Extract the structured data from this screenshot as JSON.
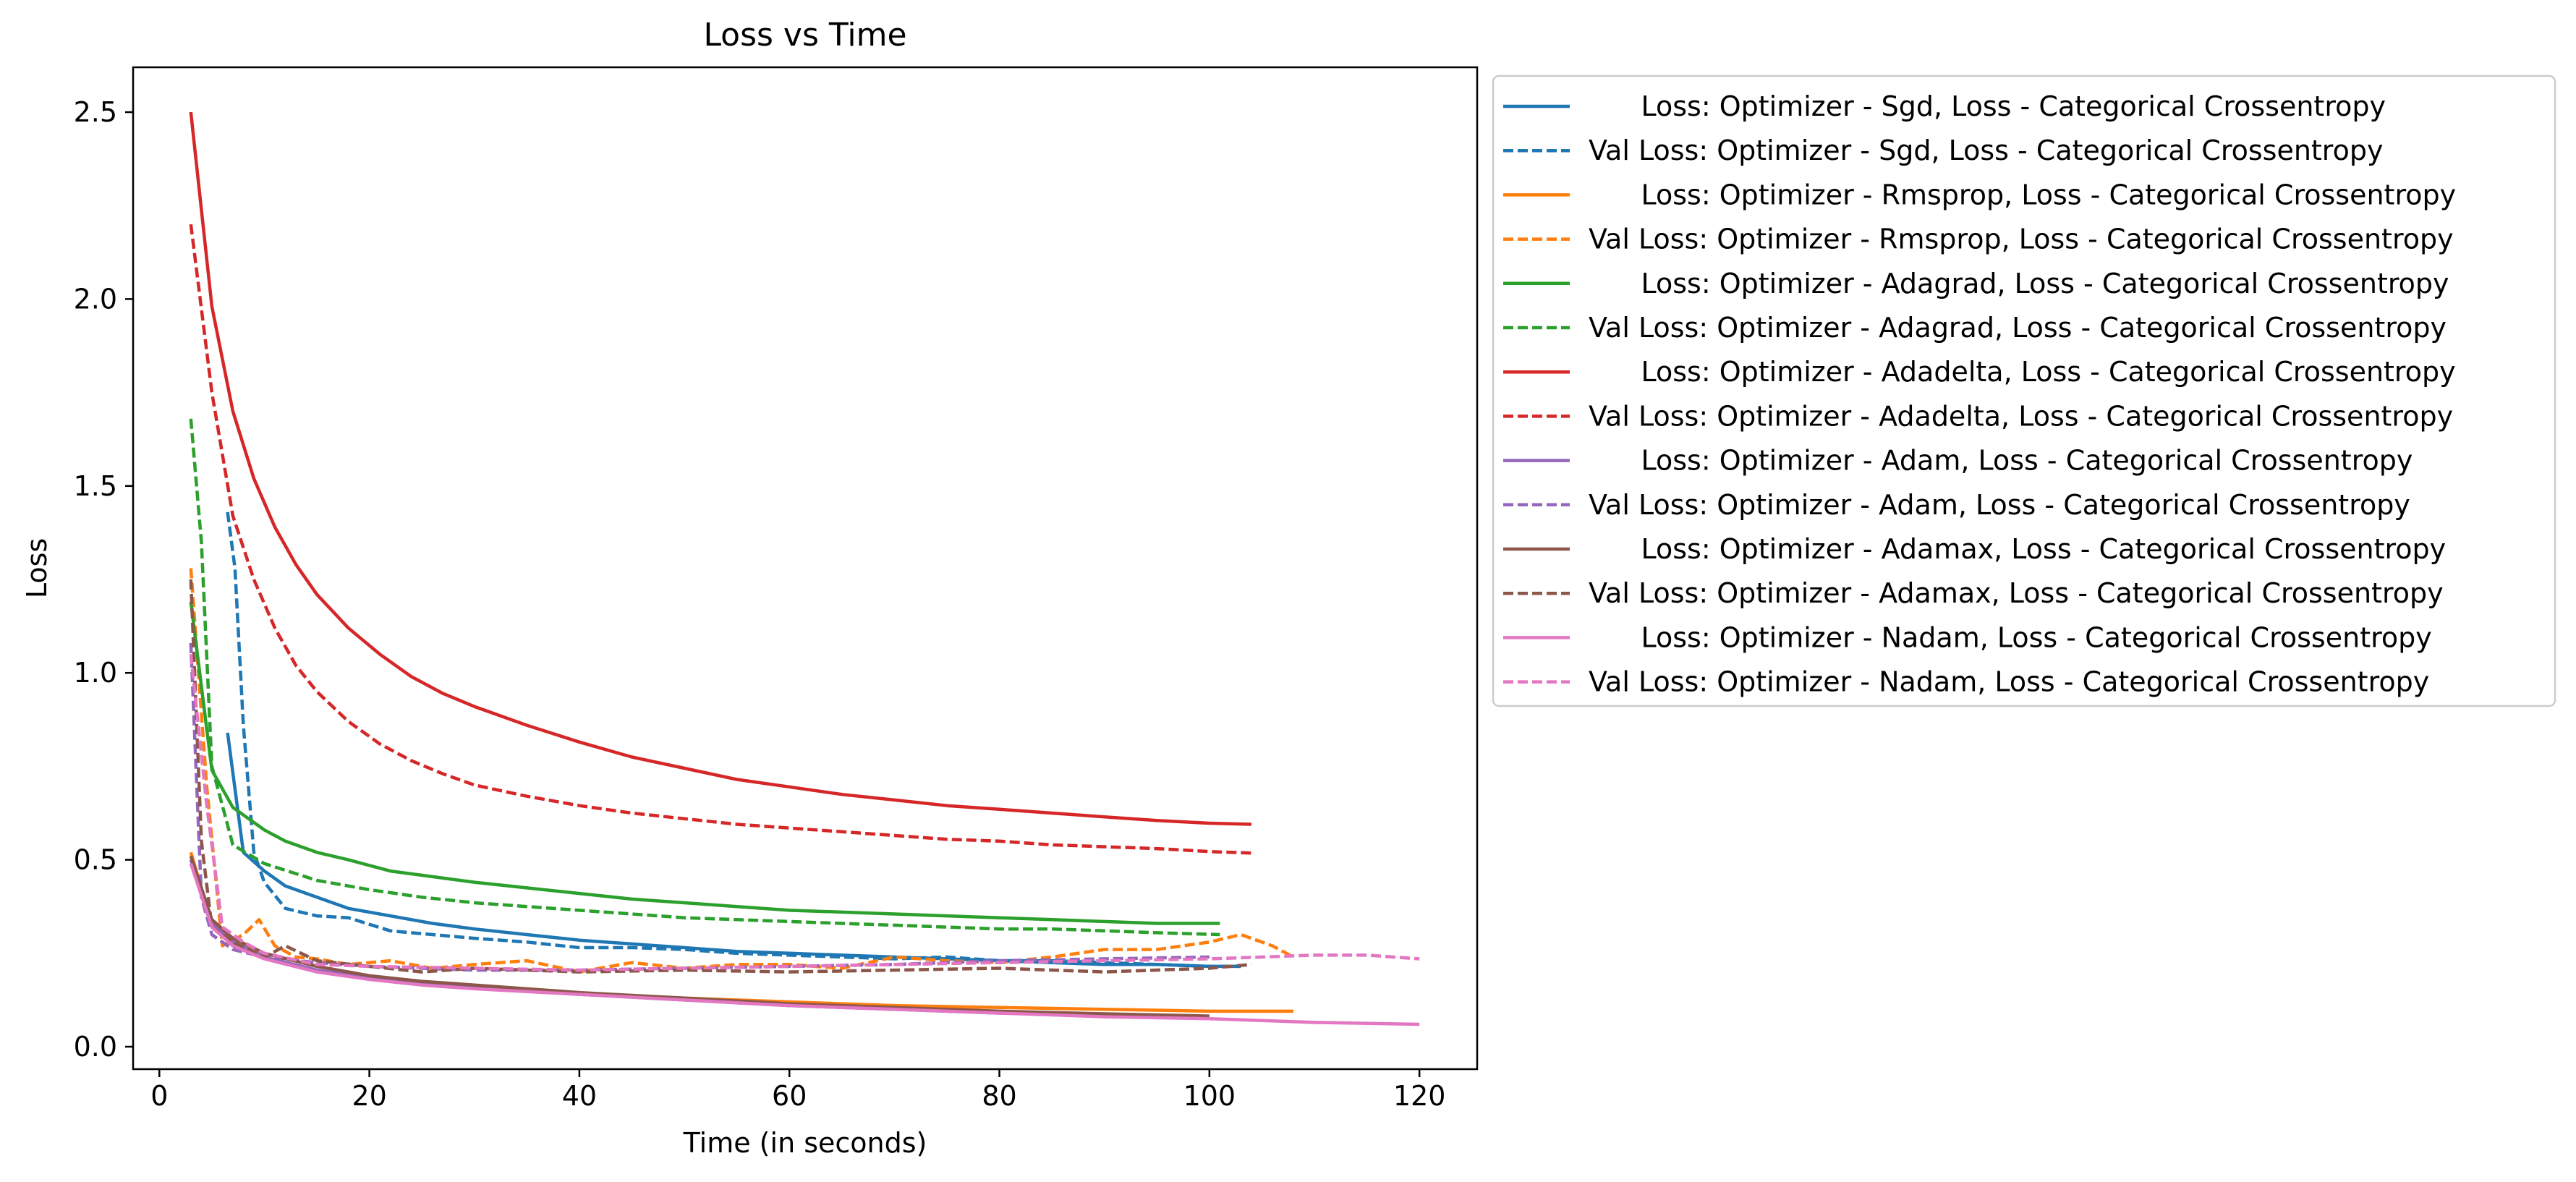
{
  "chart_data": {
    "type": "line",
    "title": "Loss vs Time",
    "xlabel": "Time (in seconds)",
    "ylabel": "Loss",
    "xlim": [
      -2.5,
      125.5
    ],
    "ylim": [
      -0.06,
      2.62
    ],
    "xticks": [
      0,
      20,
      40,
      60,
      80,
      100,
      120
    ],
    "xtick_labels": [
      "0",
      "20",
      "40",
      "60",
      "80",
      "100",
      "120"
    ],
    "yticks": [
      0.0,
      0.5,
      1.0,
      1.5,
      2.0,
      2.5
    ],
    "ytick_labels": [
      "0.0",
      "0.5",
      "1.0",
      "1.5",
      "2.0",
      "2.5"
    ],
    "grid": false,
    "legend_position": "outside-right",
    "series": [
      {
        "name": "      Loss: Optimizer - Sgd, Loss - Categorical Crossentropy",
        "color": "#1f77b4",
        "dash": "solid",
        "x": [
          6.5,
          8,
          10,
          12,
          15,
          18,
          22,
          26,
          30,
          35,
          40,
          45,
          50,
          55,
          60,
          65,
          70,
          75,
          80,
          85,
          90,
          95,
          100,
          103
        ],
        "y": [
          0.84,
          0.52,
          0.47,
          0.43,
          0.4,
          0.37,
          0.35,
          0.33,
          0.315,
          0.3,
          0.285,
          0.275,
          0.265,
          0.255,
          0.25,
          0.245,
          0.24,
          0.235,
          0.23,
          0.225,
          0.22,
          0.22,
          0.215,
          0.215
        ]
      },
      {
        "name": "Val Loss: Optimizer - Sgd, Loss - Categorical Crossentropy",
        "color": "#1f77b4",
        "dash": "dashed",
        "x": [
          6.5,
          7.2,
          8,
          9,
          10,
          12,
          15,
          18,
          22,
          26,
          30,
          35,
          40,
          45,
          50,
          55,
          60,
          65,
          70,
          75,
          80,
          85,
          90,
          95,
          100,
          103
        ],
        "y": [
          1.43,
          1.28,
          0.86,
          0.52,
          0.44,
          0.37,
          0.35,
          0.345,
          0.31,
          0.3,
          0.29,
          0.28,
          0.265,
          0.265,
          0.26,
          0.25,
          0.245,
          0.24,
          0.235,
          0.24,
          0.23,
          0.23,
          0.225,
          0.22,
          0.215,
          0.215
        ]
      },
      {
        "name": "      Loss: Optimizer - Rmsprop, Loss - Categorical Crossentropy",
        "color": "#ff7f0e",
        "dash": "solid",
        "x": [
          3,
          5,
          7,
          10,
          15,
          20,
          25,
          30,
          40,
          50,
          60,
          70,
          80,
          90,
          100,
          108
        ],
        "y": [
          0.52,
          0.33,
          0.28,
          0.24,
          0.205,
          0.185,
          0.17,
          0.16,
          0.14,
          0.13,
          0.12,
          0.11,
          0.105,
          0.1,
          0.095,
          0.095
        ]
      },
      {
        "name": "Val Loss: Optimizer - Rmsprop, Loss - Categorical Crossentropy",
        "color": "#ff7f0e",
        "dash": "dashed",
        "x": [
          3,
          4.5,
          6,
          8,
          9.5,
          11,
          13,
          15,
          18,
          22,
          26,
          30,
          35,
          40,
          45,
          50,
          55,
          60,
          65,
          70,
          75,
          80,
          85,
          90,
          95,
          100,
          103,
          106,
          108
        ],
        "y": [
          1.28,
          0.7,
          0.27,
          0.3,
          0.34,
          0.27,
          0.24,
          0.235,
          0.22,
          0.23,
          0.21,
          0.22,
          0.23,
          0.2,
          0.225,
          0.21,
          0.22,
          0.22,
          0.21,
          0.24,
          0.23,
          0.225,
          0.24,
          0.26,
          0.26,
          0.28,
          0.3,
          0.27,
          0.24
        ]
      },
      {
        "name": "      Loss: Optimizer - Adagrad, Loss - Categorical Crossentropy",
        "color": "#2ca02c",
        "dash": "solid",
        "x": [
          3,
          5,
          7,
          10,
          12,
          15,
          18,
          22,
          26,
          30,
          35,
          40,
          45,
          50,
          55,
          60,
          65,
          70,
          75,
          80,
          85,
          90,
          95,
          101
        ],
        "y": [
          1.19,
          0.74,
          0.64,
          0.58,
          0.55,
          0.52,
          0.5,
          0.47,
          0.455,
          0.44,
          0.425,
          0.41,
          0.395,
          0.385,
          0.375,
          0.365,
          0.36,
          0.355,
          0.35,
          0.345,
          0.34,
          0.335,
          0.33,
          0.33
        ]
      },
      {
        "name": "Val Loss: Optimizer - Adagrad, Loss - Categorical Crossentropy",
        "color": "#2ca02c",
        "dash": "dashed",
        "x": [
          3,
          4,
          5,
          7,
          10,
          15,
          20,
          25,
          30,
          35,
          40,
          45,
          50,
          55,
          60,
          65,
          70,
          75,
          80,
          85,
          90,
          95,
          101
        ],
        "y": [
          1.68,
          1.35,
          0.75,
          0.54,
          0.49,
          0.445,
          0.42,
          0.4,
          0.385,
          0.375,
          0.365,
          0.355,
          0.345,
          0.34,
          0.335,
          0.33,
          0.325,
          0.32,
          0.315,
          0.315,
          0.31,
          0.305,
          0.3
        ]
      },
      {
        "name": "      Loss: Optimizer - Adadelta, Loss - Categorical Crossentropy",
        "color": "#d62728",
        "dash": "solid",
        "x": [
          3,
          5,
          7,
          9,
          11,
          13,
          15,
          18,
          21,
          24,
          27,
          30,
          35,
          40,
          45,
          50,
          55,
          60,
          65,
          70,
          75,
          80,
          85,
          90,
          95,
          100,
          104
        ],
        "y": [
          2.5,
          1.98,
          1.7,
          1.52,
          1.39,
          1.29,
          1.21,
          1.12,
          1.05,
          0.99,
          0.945,
          0.91,
          0.86,
          0.815,
          0.775,
          0.745,
          0.715,
          0.695,
          0.675,
          0.66,
          0.645,
          0.635,
          0.625,
          0.615,
          0.605,
          0.598,
          0.595
        ]
      },
      {
        "name": "Val Loss: Optimizer - Adadelta, Loss - Categorical Crossentropy",
        "color": "#d62728",
        "dash": "dashed",
        "x": [
          3,
          5,
          7,
          9,
          11,
          13,
          15,
          18,
          21,
          24,
          27,
          30,
          35,
          40,
          45,
          50,
          55,
          60,
          65,
          70,
          75,
          80,
          85,
          90,
          95,
          100,
          104
        ],
        "y": [
          2.2,
          1.75,
          1.42,
          1.25,
          1.12,
          1.02,
          0.95,
          0.87,
          0.81,
          0.765,
          0.73,
          0.7,
          0.67,
          0.645,
          0.625,
          0.61,
          0.595,
          0.585,
          0.575,
          0.565,
          0.555,
          0.55,
          0.54,
          0.535,
          0.53,
          0.522,
          0.518
        ]
      },
      {
        "name": "      Loss: Optimizer - Adam, Loss - Categorical Crossentropy",
        "color": "#9467bd",
        "dash": "solid",
        "x": [
          3,
          5,
          7,
          10,
          15,
          20,
          25,
          30,
          40,
          50,
          60,
          70,
          80,
          90,
          100
        ],
        "y": [
          0.5,
          0.33,
          0.28,
          0.24,
          0.205,
          0.185,
          0.17,
          0.16,
          0.14,
          0.125,
          0.11,
          0.1,
          0.09,
          0.085,
          0.08
        ]
      },
      {
        "name": "Val Loss: Optimizer - Adam, Loss - Categorical Crossentropy",
        "color": "#9467bd",
        "dash": "dashed",
        "x": [
          3,
          4,
          5,
          7,
          10,
          15,
          20,
          25,
          30,
          40,
          50,
          60,
          70,
          80,
          90,
          100
        ],
        "y": [
          1.08,
          0.4,
          0.3,
          0.26,
          0.24,
          0.225,
          0.215,
          0.21,
          0.205,
          0.205,
          0.21,
          0.215,
          0.22,
          0.23,
          0.235,
          0.24
        ]
      },
      {
        "name": "      Loss: Optimizer - Adamax, Loss - Categorical Crossentropy",
        "color": "#8c564b",
        "dash": "solid",
        "x": [
          3,
          5,
          7,
          10,
          15,
          20,
          25,
          30,
          40,
          50,
          60,
          70,
          80,
          90,
          100
        ],
        "y": [
          0.51,
          0.34,
          0.29,
          0.25,
          0.215,
          0.19,
          0.175,
          0.165,
          0.145,
          0.13,
          0.115,
          0.105,
          0.095,
          0.088,
          0.082
        ]
      },
      {
        "name": "Val Loss: Optimizer - Adamax, Loss - Categorical Crossentropy",
        "color": "#8c564b",
        "dash": "dashed",
        "x": [
          3,
          4,
          5,
          7,
          10,
          12,
          15,
          20,
          25,
          30,
          40,
          50,
          60,
          70,
          80,
          90,
          100,
          104
        ],
        "y": [
          1.25,
          0.55,
          0.32,
          0.28,
          0.24,
          0.27,
          0.23,
          0.215,
          0.2,
          0.21,
          0.2,
          0.205,
          0.2,
          0.205,
          0.21,
          0.2,
          0.21,
          0.22
        ]
      },
      {
        "name": "      Loss: Optimizer - Nadam, Loss - Categorical Crossentropy",
        "color": "#e377c2",
        "dash": "solid",
        "x": [
          3,
          5,
          7,
          10,
          15,
          20,
          25,
          30,
          40,
          50,
          60,
          70,
          80,
          90,
          100,
          110,
          120
        ],
        "y": [
          0.49,
          0.32,
          0.27,
          0.235,
          0.2,
          0.18,
          0.165,
          0.155,
          0.14,
          0.125,
          0.11,
          0.1,
          0.09,
          0.08,
          0.075,
          0.065,
          0.06
        ]
      },
      {
        "name": "Val Loss: Optimizer - Nadam, Loss - Categorical Crossentropy",
        "color": "#e377c2",
        "dash": "dashed",
        "x": [
          3,
          4.5,
          6,
          8,
          10,
          15,
          20,
          30,
          40,
          50,
          60,
          70,
          80,
          90,
          100,
          105,
          110,
          115,
          120
        ],
        "y": [
          1.05,
          0.65,
          0.32,
          0.28,
          0.25,
          0.22,
          0.215,
          0.21,
          0.205,
          0.21,
          0.215,
          0.22,
          0.225,
          0.23,
          0.235,
          0.24,
          0.245,
          0.245,
          0.235
        ]
      }
    ]
  }
}
